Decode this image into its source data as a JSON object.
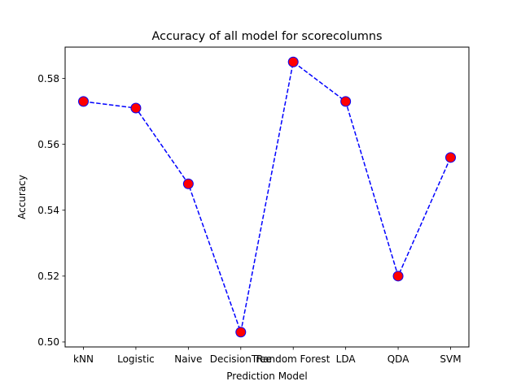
{
  "chart_data": {
    "type": "line",
    "title": "Accuracy of all model for scorecolumns",
    "xlabel": "Prediction Model",
    "ylabel": "Accuracy",
    "categories": [
      "kNN",
      "Logistic",
      "Naive",
      "DecisionTree",
      "Random Forest",
      "LDA",
      "QDA",
      "SVM"
    ],
    "series": [
      {
        "values": [
          0.573,
          0.571,
          0.548,
          0.503,
          0.585,
          0.573,
          0.52,
          0.556
        ],
        "line_color": "#0000ff",
        "line_style": "dashed",
        "marker": "circle",
        "marker_face_color": "#ff0000",
        "marker_edge_color": "#0000ff"
      }
    ],
    "ylim": [
      0.4985,
      0.5895
    ],
    "yticks": [
      0.5,
      0.52,
      0.54,
      0.56,
      0.58
    ],
    "ytick_labels": [
      "0.50",
      "0.52",
      "0.54",
      "0.56",
      "0.58"
    ],
    "grid": false,
    "legend": "none"
  }
}
